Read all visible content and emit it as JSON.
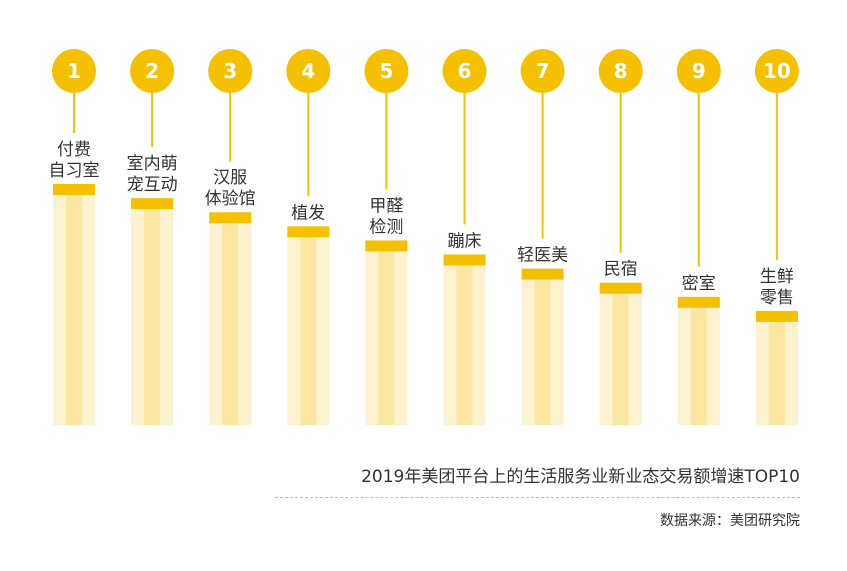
{
  "chart_data": {
    "type": "bar",
    "title": "2019年美团平台上的生活服务业新业态交易额增速TOP10",
    "source": "数据来源：美团研究院",
    "categories": [
      {
        "rank": "1",
        "label_lines": [
          "付费",
          "自习室"
        ]
      },
      {
        "rank": "2",
        "label_lines": [
          "室内萌",
          "宠互动"
        ]
      },
      {
        "rank": "3",
        "label_lines": [
          "汉服",
          "体验馆"
        ]
      },
      {
        "rank": "4",
        "label_lines": [
          "植发"
        ]
      },
      {
        "rank": "5",
        "label_lines": [
          "甲醛",
          "检测"
        ]
      },
      {
        "rank": "6",
        "label_lines": [
          "蹦床"
        ]
      },
      {
        "rank": "7",
        "label_lines": [
          "轻医美"
        ]
      },
      {
        "rank": "8",
        "label_lines": [
          "民宿"
        ]
      },
      {
        "rank": "9",
        "label_lines": [
          "密室"
        ]
      },
      {
        "rank": "10",
        "label_lines": [
          "生鲜",
          "零售"
        ]
      }
    ],
    "values": [
      10,
      9.4,
      8.8,
      8.2,
      7.6,
      7.0,
      6.4,
      5.8,
      5.2,
      4.6
    ],
    "ylim": [
      0,
      10
    ],
    "axis": false,
    "grid": false,
    "legend": "none",
    "colors": {
      "accent": "#f5c000",
      "bar_light": "#fdf2d0",
      "bar_mid": "#fbe6a2",
      "rank_text": "#ffffff"
    }
  }
}
